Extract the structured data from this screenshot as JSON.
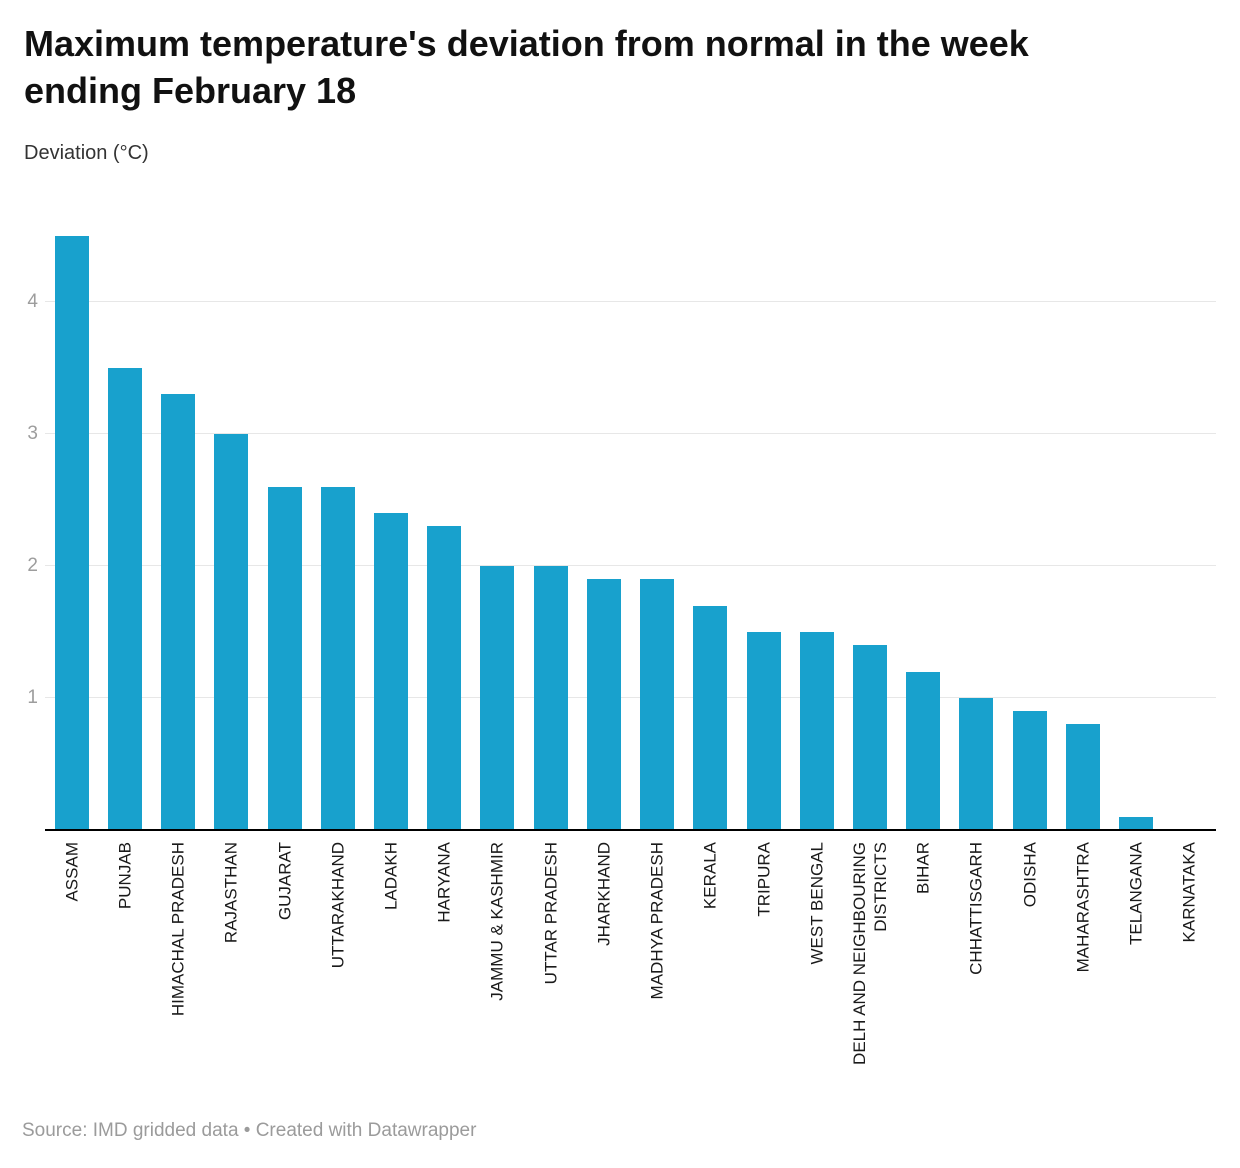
{
  "page": {
    "title": "Maximum temperature's deviation from normal in the week ending February 18",
    "title_lines": [
      "Maximum temperature's deviation from normal in the week",
      "ending February 18"
    ],
    "subtitle": "Deviation (°C)",
    "footer": "Source: IMD gridded data • Created with Datawrapper"
  },
  "colors": {
    "bar": "#18a1cd",
    "axis_line": "#000000",
    "gridline": "#e7e7e7",
    "tick_label": "#9d9d9d",
    "x_label": "#1a1a1a",
    "title": "#111111",
    "subtitle": "#333333",
    "footer": "#9b9b9b"
  },
  "chart_data": {
    "type": "bar",
    "title": "Maximum temperature's deviation from normal in the week ending February 18",
    "xlabel": "",
    "ylabel": "Deviation (°C)",
    "ylim": [
      0,
      4.6
    ],
    "yticks": [
      1,
      2,
      3,
      4
    ],
    "grid": true,
    "legend": false,
    "bar_color": "#18a1cd",
    "categories": [
      "ASSAM",
      "PUNJAB",
      "HIMACHAL PRADESH",
      "RAJASTHAN",
      "GUJARAT",
      "UTTARAKHAND",
      "LADAKH",
      "HARYANA",
      "JAMMU & KASHMIR",
      "UTTAR PRADESH",
      "JHARKHAND",
      "MADHYA PRADESH",
      "KERALA",
      "TRIPURA",
      "WEST BENGAL",
      "DELH AND NEIGHBOURING\nDISTRICTS",
      "BIHAR",
      "CHHATTISGARH",
      "ODISHA",
      "MAHARASHTRA",
      "TELANGANA",
      "KARNATAKA"
    ],
    "values": [
      4.5,
      3.5,
      3.3,
      3.0,
      2.6,
      2.6,
      2.4,
      2.3,
      2.0,
      2.0,
      1.9,
      1.9,
      1.7,
      1.5,
      1.5,
      1.4,
      1.2,
      1.0,
      0.9,
      0.8,
      0.1,
      0
    ]
  }
}
